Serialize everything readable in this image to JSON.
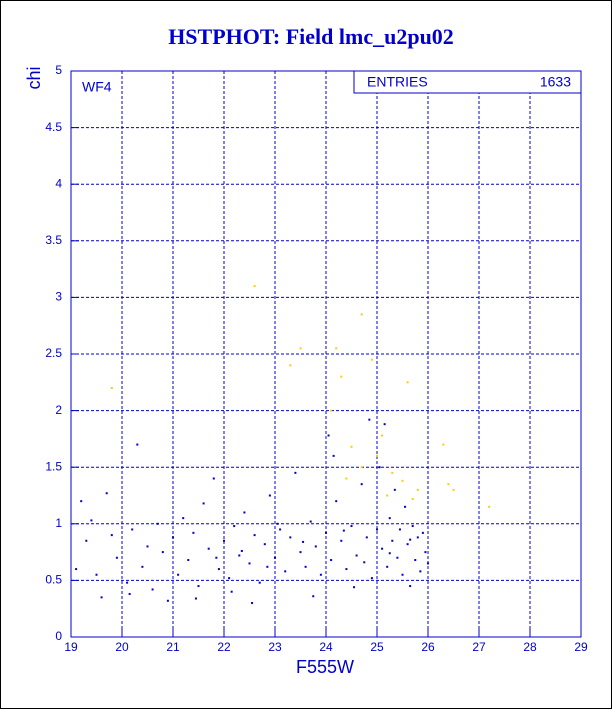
{
  "chart_data": {
    "type": "scatter",
    "title": "HSTPHOT: Field lmc_u2pu02",
    "x_label": "F555W",
    "y_label": "chi",
    "annotation": "WF4",
    "stats": {
      "label": "ENTRIES",
      "value": 1633
    },
    "xlim": [
      19,
      29
    ],
    "ylim": [
      0,
      5
    ],
    "xticks": [
      19,
      20,
      21,
      22,
      23,
      24,
      25,
      26,
      27,
      28,
      29
    ],
    "yticks": [
      0,
      0.5,
      1,
      1.5,
      2,
      2.5,
      3,
      3.5,
      4,
      4.5,
      5
    ],
    "grid": true,
    "series": [
      {
        "color": "#0000cc",
        "x": [
          19.1,
          19.2,
          19.3,
          19.4,
          19.5,
          19.6,
          19.7,
          19.8,
          19.9,
          20.1,
          20.2,
          20.3,
          20.4,
          20.5,
          20.6,
          20.7,
          20.8,
          20.9,
          21.0,
          21.1,
          21.2,
          21.3,
          21.4,
          21.5,
          21.6,
          21.7,
          21.8,
          21.9,
          22.0,
          22.1,
          22.2,
          22.3,
          22.4,
          22.5,
          22.6,
          22.7,
          22.8,
          22.9,
          23.0,
          23.1,
          23.2,
          23.3,
          23.4,
          23.5,
          23.6,
          23.7,
          23.8,
          23.9,
          24.0,
          24.05,
          24.1,
          24.2,
          24.3,
          24.4,
          24.5,
          24.6,
          24.7,
          24.8,
          24.85,
          24.9,
          25.0,
          25.05,
          25.1,
          25.15,
          25.2,
          25.25,
          25.3,
          25.35,
          25.4,
          25.45,
          25.5,
          25.55,
          25.6,
          25.65,
          25.7,
          25.75,
          25.8,
          25.85,
          25.9,
          25.95,
          26.0,
          22.15,
          23.75,
          24.55,
          20.15,
          21.45,
          22.55,
          24.15,
          23.05,
          22.35,
          23.55,
          24.75,
          25.25,
          25.65,
          24.35,
          21.85,
          22.85
        ],
        "values": [
          0.6,
          1.2,
          0.85,
          1.03,
          0.55,
          0.35,
          1.27,
          0.9,
          0.7,
          0.48,
          0.95,
          1.7,
          0.62,
          0.8,
          0.42,
          1.0,
          0.75,
          0.32,
          0.88,
          0.55,
          1.05,
          0.68,
          0.92,
          0.45,
          1.18,
          0.78,
          1.4,
          0.6,
          0.85,
          0.52,
          0.98,
          0.72,
          1.1,
          0.65,
          0.9,
          0.48,
          0.82,
          1.25,
          0.7,
          0.95,
          0.58,
          0.88,
          1.45,
          0.75,
          0.62,
          1.02,
          0.8,
          0.55,
          0.92,
          1.78,
          0.68,
          1.2,
          0.85,
          0.6,
          0.98,
          0.72,
          1.35,
          0.88,
          1.92,
          0.52,
          0.95,
          1.5,
          0.78,
          1.88,
          0.62,
          1.05,
          0.85,
          1.3,
          0.7,
          0.95,
          0.55,
          1.15,
          0.82,
          0.45,
          0.98,
          0.68,
          0.88,
          0.58,
          0.92,
          0.75,
          0.65,
          0.4,
          0.36,
          0.44,
          0.38,
          0.34,
          0.3,
          1.6,
          1.0,
          0.76,
          0.84,
          0.66,
          0.74,
          0.86,
          0.94,
          0.7,
          0.62
        ]
      },
      {
        "color": "#ffcc00",
        "x": [
          22.6,
          23.3,
          23.5,
          24.2,
          24.7,
          24.9,
          24.3,
          25.6,
          24.5,
          24.7,
          25.0,
          25.1,
          25.3,
          25.5,
          25.7,
          25.8,
          26.3,
          26.4,
          26.5,
          27.2,
          19.8,
          24.4,
          25.2,
          24.1
        ],
        "values": [
          3.1,
          2.4,
          2.55,
          2.55,
          2.85,
          2.45,
          2.3,
          2.25,
          1.68,
          1.5,
          1.6,
          1.78,
          1.45,
          1.38,
          1.22,
          1.3,
          1.7,
          1.35,
          1.3,
          1.15,
          2.2,
          1.4,
          1.25,
          2.0
        ]
      }
    ]
  }
}
